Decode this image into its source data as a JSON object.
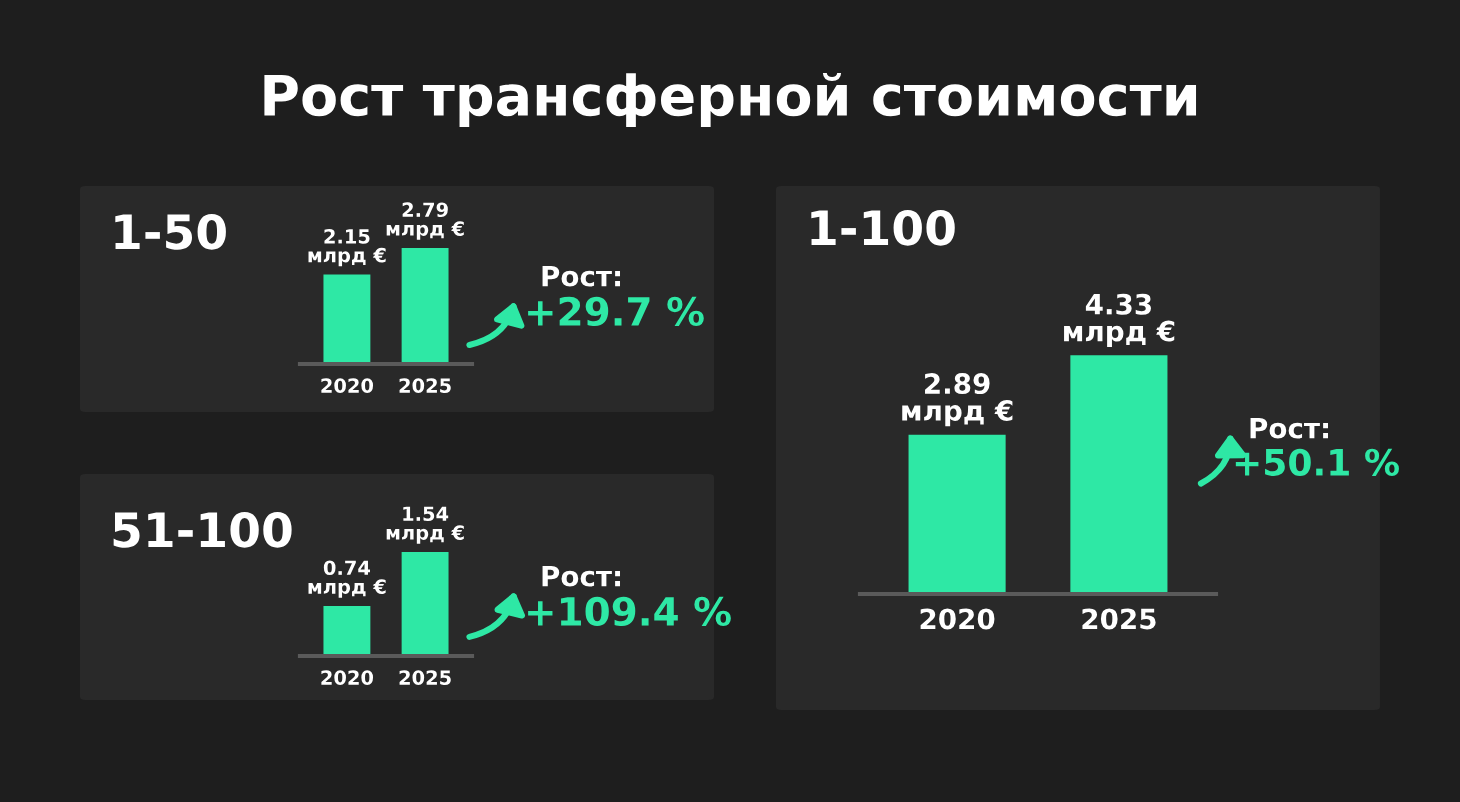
{
  "chart_data": [
    {
      "type": "bar",
      "title": "1-50",
      "categories": [
        "2020",
        "2025"
      ],
      "values": [
        2.15,
        2.79
      ],
      "value_labels": [
        "2.15\nмлрд €",
        "2.79\nмлрд €"
      ],
      "color": "#2ee8a5",
      "annotations": [
        "Рост трансферной стоимости",
        "Рост:",
        "+29.7 %"
      ]
    },
    {
      "type": "bar",
      "title": "51-100",
      "categories": [
        "2020",
        "2025"
      ],
      "values": [
        0.74,
        1.54
      ],
      "value_labels": [
        "0.74\nмлрд €",
        "1.54\nмлрд €"
      ],
      "color": "#2ee8a5",
      "annotations": [
        "Рост:",
        "+109.4 %"
      ]
    },
    {
      "type": "bar",
      "title": "1-100",
      "categories": [
        "2020",
        "2025"
      ],
      "values": [
        2.89,
        4.33
      ],
      "value_labels": [
        "2.89\nмлрд €",
        "4.33\nмлрд €"
      ],
      "color": "#2ee8a5",
      "annotations": [
        "Рост:",
        "+50.1 %"
      ]
    }
  ]
}
